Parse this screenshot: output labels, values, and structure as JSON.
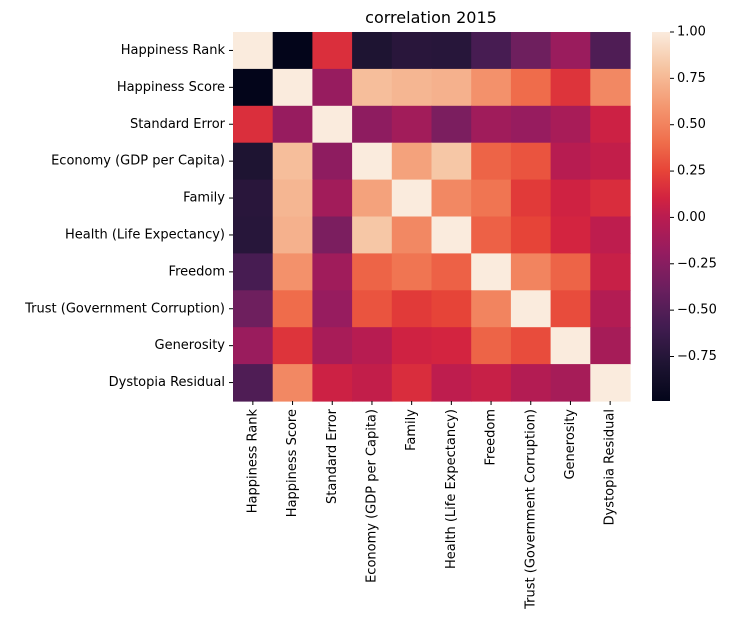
{
  "chart_data": {
    "type": "heatmap",
    "title": "correlation 2015",
    "xlabel": "",
    "ylabel": "",
    "row_labels": [
      "Happiness Rank",
      "Happiness Score",
      "Standard Error",
      "Economy (GDP per Capita)",
      "Family",
      "Health (Life Expectancy)",
      "Freedom",
      "Trust (Government Corruption)",
      "Generosity",
      "Dystopia Residual"
    ],
    "col_labels": [
      "Happiness Rank",
      "Happiness Score",
      "Standard Error",
      "Economy (GDP per Capita)",
      "Family",
      "Health (Life Expectancy)",
      "Freedom",
      "Trust (Government Corruption)",
      "Generosity",
      "Dystopia Residual"
    ],
    "values": [
      [
        1.0,
        -0.99,
        0.16,
        -0.79,
        -0.73,
        -0.74,
        -0.56,
        -0.37,
        -0.16,
        -0.52
      ],
      [
        -0.99,
        1.0,
        -0.18,
        0.78,
        0.74,
        0.72,
        0.57,
        0.4,
        0.18,
        0.53
      ],
      [
        0.16,
        -0.18,
        1.0,
        -0.22,
        -0.12,
        -0.31,
        -0.13,
        -0.18,
        -0.09,
        0.08
      ],
      [
        -0.79,
        0.78,
        -0.22,
        1.0,
        0.65,
        0.82,
        0.37,
        0.31,
        -0.01,
        0.04
      ],
      [
        -0.73,
        0.74,
        -0.12,
        0.65,
        1.0,
        0.53,
        0.44,
        0.21,
        0.09,
        0.15
      ],
      [
        -0.74,
        0.72,
        -0.31,
        0.82,
        0.53,
        1.0,
        0.36,
        0.25,
        0.11,
        0.02
      ],
      [
        -0.56,
        0.57,
        -0.13,
        0.37,
        0.44,
        0.36,
        1.0,
        0.51,
        0.37,
        0.06
      ],
      [
        -0.37,
        0.4,
        -0.18,
        0.31,
        0.21,
        0.25,
        0.51,
        1.0,
        0.28,
        -0.03
      ],
      [
        -0.16,
        0.18,
        -0.09,
        -0.01,
        0.09,
        0.11,
        0.37,
        0.28,
        1.0,
        -0.1
      ],
      [
        -0.52,
        0.53,
        0.08,
        0.04,
        0.15,
        0.02,
        0.06,
        -0.03,
        -0.1,
        1.0
      ]
    ],
    "vmin": -0.99,
    "vmax": 1.0,
    "colormap": "rocket",
    "colorbar_ticks": [
      1.0,
      0.75,
      0.5,
      0.25,
      0.0,
      -0.25,
      -0.5,
      -0.75
    ],
    "colorbar_tick_labels": [
      "1.00",
      "0.75",
      "0.50",
      "0.25",
      "0.00",
      "−0.25",
      "−0.50",
      "−0.75"
    ]
  }
}
